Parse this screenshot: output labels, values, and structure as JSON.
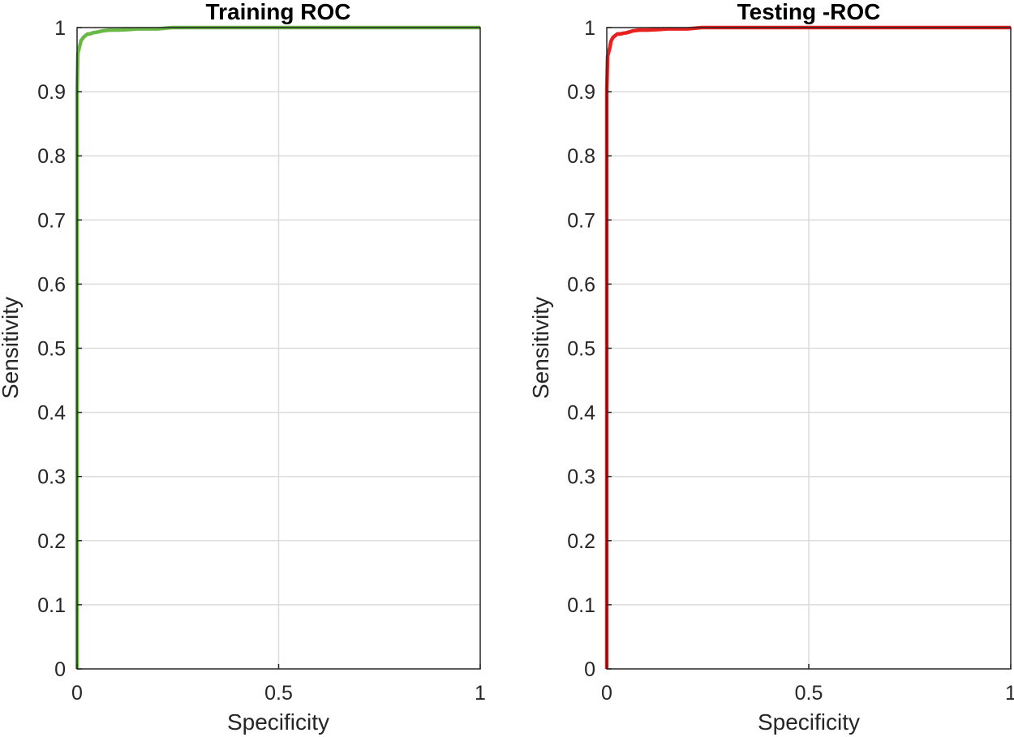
{
  "chart_data": [
    {
      "type": "line",
      "title": "Training ROC",
      "xlabel": "Specificity",
      "ylabel": "Sensitivity",
      "xlim": [
        0,
        1
      ],
      "ylim": [
        0,
        1
      ],
      "x_ticks": [
        "0",
        "0.5",
        "1"
      ],
      "y_ticks": [
        "0",
        "0.1",
        "0.2",
        "0.3",
        "0.4",
        "0.5",
        "0.6",
        "0.7",
        "0.8",
        "0.9",
        "1"
      ],
      "grid": true,
      "color": "#6ab846",
      "series": [
        {
          "name": "Training ROC",
          "x": [
            0,
            0,
            0.002,
            0.004,
            0.006,
            0.008,
            0.01,
            0.013,
            0.016,
            0.02,
            0.026,
            0.032,
            0.04,
            0.05,
            0.065,
            0.08,
            0.1,
            0.13,
            0.15,
            0.2,
            0.235,
            0.3,
            0.5,
            0.7,
            1
          ],
          "y": [
            0,
            0.9,
            0.96,
            0.965,
            0.97,
            0.975,
            0.98,
            0.982,
            0.985,
            0.987,
            0.99,
            0.99,
            0.992,
            0.993,
            0.995,
            0.996,
            0.996,
            0.997,
            0.998,
            0.998,
            1.0,
            1.0,
            1.0,
            1.0,
            1.0
          ]
        }
      ]
    },
    {
      "type": "line",
      "title": "Testing -ROC",
      "xlabel": "Specificity",
      "ylabel": "Sensitivity",
      "xlim": [
        0,
        1
      ],
      "ylim": [
        0,
        1
      ],
      "x_ticks": [
        "0",
        "0.5",
        "1"
      ],
      "y_ticks": [
        "0",
        "0.1",
        "0.2",
        "0.3",
        "0.4",
        "0.5",
        "0.6",
        "0.7",
        "0.8",
        "0.9",
        "1"
      ],
      "grid": true,
      "color": "#e8211e",
      "series": [
        {
          "name": "Testing ROC",
          "x": [
            0,
            0,
            0.002,
            0.004,
            0.006,
            0.008,
            0.01,
            0.013,
            0.016,
            0.02,
            0.026,
            0.032,
            0.04,
            0.05,
            0.065,
            0.08,
            0.1,
            0.13,
            0.15,
            0.2,
            0.235,
            0.3,
            0.5,
            0.7,
            1
          ],
          "y": [
            0,
            0.9,
            0.955,
            0.96,
            0.965,
            0.97,
            0.978,
            0.982,
            0.985,
            0.987,
            0.99,
            0.99,
            0.991,
            0.992,
            0.995,
            0.996,
            0.996,
            0.997,
            0.998,
            0.998,
            1.0,
            1.0,
            1.0,
            1.0,
            1.0
          ]
        }
      ]
    }
  ]
}
